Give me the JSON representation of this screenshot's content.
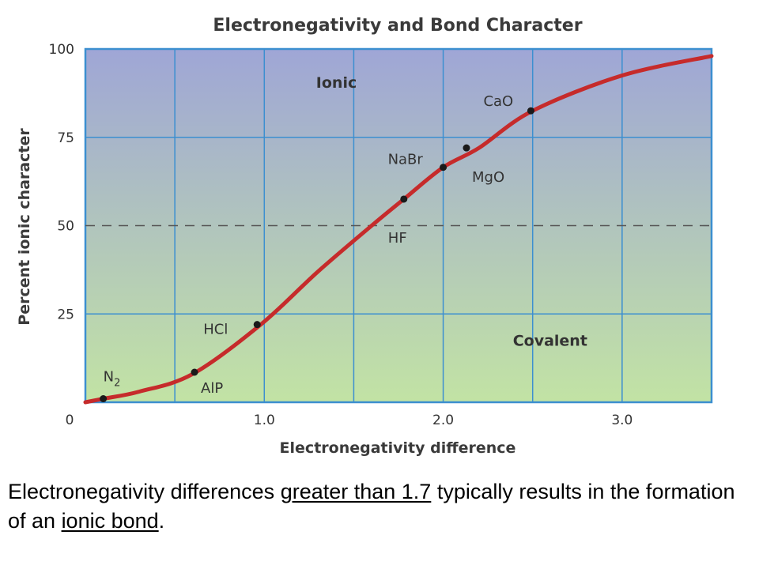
{
  "chart_data": {
    "type": "line",
    "title": "Electronegativity and Bond Character",
    "xlabel": "Electronegativity difference",
    "ylabel": "Percent ionic character",
    "xlim": [
      0,
      3.5
    ],
    "ylim": [
      0,
      100
    ],
    "x_ticks": [
      "0",
      "1.0",
      "2.0",
      "3.0"
    ],
    "y_ticks": [
      "25",
      "50",
      "75",
      "100"
    ],
    "threshold_line": {
      "y": 50,
      "style": "dashed"
    },
    "regions": [
      {
        "label": "Ionic",
        "x": 1.4,
        "y": 89
      },
      {
        "label": "Covalent",
        "x": 2.5,
        "y": 16
      }
    ],
    "curve": {
      "color": "#c62b2b",
      "points": [
        [
          0.0,
          0
        ],
        [
          0.1,
          1.0
        ],
        [
          0.3,
          3
        ],
        [
          0.6,
          8
        ],
        [
          0.98,
          22
        ],
        [
          1.3,
          37
        ],
        [
          1.6,
          50
        ],
        [
          1.78,
          57.5
        ],
        [
          2.0,
          66.5
        ],
        [
          2.2,
          72
        ],
        [
          2.5,
          82.5
        ],
        [
          3.0,
          92.5
        ],
        [
          3.5,
          98
        ]
      ]
    },
    "points": [
      {
        "label": "N",
        "sub": "2",
        "x": 0.1,
        "y": 1.0
      },
      {
        "label": "AlP",
        "x": 0.61,
        "y": 8.5
      },
      {
        "label": "HCl",
        "x": 0.96,
        "y": 22
      },
      {
        "label": "HF",
        "x": 1.78,
        "y": 57.5
      },
      {
        "label": "NaBr",
        "x": 2.0,
        "y": 66.5
      },
      {
        "label": "MgO",
        "x": 2.13,
        "y": 72
      },
      {
        "label": "CaO",
        "x": 2.49,
        "y": 82.5
      }
    ],
    "colors": {
      "gradient_top": "#9fa6d6",
      "gradient_bottom": "#c2e3a4",
      "grid": "#3c8fd0",
      "curve": "#c62b2b",
      "marker": "#1a1a1a"
    }
  },
  "caption": {
    "part1": "Electronegativity differences ",
    "underline1": "greater than 1.7",
    "part2": " typically results in the formation of an ",
    "underline2": "ionic bond",
    "part3": "."
  }
}
